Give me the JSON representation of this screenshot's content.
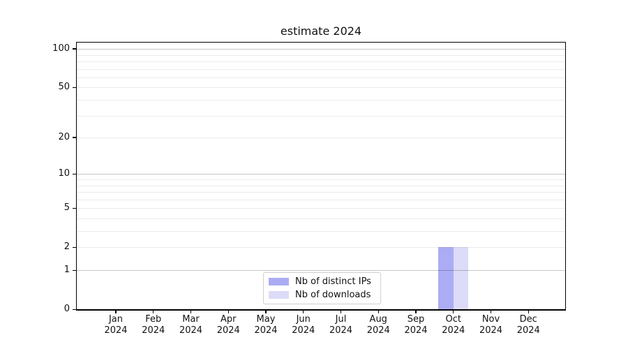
{
  "title": "estimate 2024",
  "legend": {
    "items": [
      {
        "label": "Nb of distinct IPs",
        "color": "#acacf4"
      },
      {
        "label": "Nb of downloads",
        "color": "#dcdcf8"
      }
    ]
  },
  "x_axis": {
    "months": [
      "Jan",
      "Feb",
      "Mar",
      "Apr",
      "May",
      "Jun",
      "Jul",
      "Aug",
      "Sep",
      "Oct",
      "Nov",
      "Dec"
    ],
    "year": "2024"
  },
  "y_axis": {
    "tick_labels": [
      "0",
      "1",
      "2",
      "5",
      "10",
      "20",
      "50",
      "100"
    ]
  },
  "chart_data": {
    "type": "bar",
    "title": "estimate 2024",
    "xlabel": "",
    "ylabel": "",
    "categories": [
      "Jan 2024",
      "Feb 2024",
      "Mar 2024",
      "Apr 2024",
      "May 2024",
      "Jun 2024",
      "Jul 2024",
      "Aug 2024",
      "Sep 2024",
      "Oct 2024",
      "Nov 2024",
      "Dec 2024"
    ],
    "series": [
      {
        "name": "Nb of distinct IPs",
        "color": "#acacf4",
        "values": [
          0,
          0,
          0,
          0,
          0,
          0,
          0,
          0,
          0,
          2,
          0,
          0
        ]
      },
      {
        "name": "Nb of downloads",
        "color": "#dcdcf8",
        "values": [
          0,
          0,
          0,
          0,
          0,
          0,
          0,
          0,
          0,
          2,
          0,
          0
        ]
      }
    ],
    "yscale": "log1p",
    "ylim": [
      0,
      112
    ],
    "y_major_ticks": [
      0,
      1,
      2,
      5,
      10,
      20,
      50,
      100
    ],
    "y_decade_gridlines": [
      1,
      10,
      100
    ],
    "y_minor_gridlines": [
      2,
      3,
      4,
      5,
      6,
      7,
      8,
      9,
      20,
      30,
      40,
      50,
      60,
      70,
      80,
      90
    ],
    "grid": true,
    "legend_position": "lower center"
  }
}
